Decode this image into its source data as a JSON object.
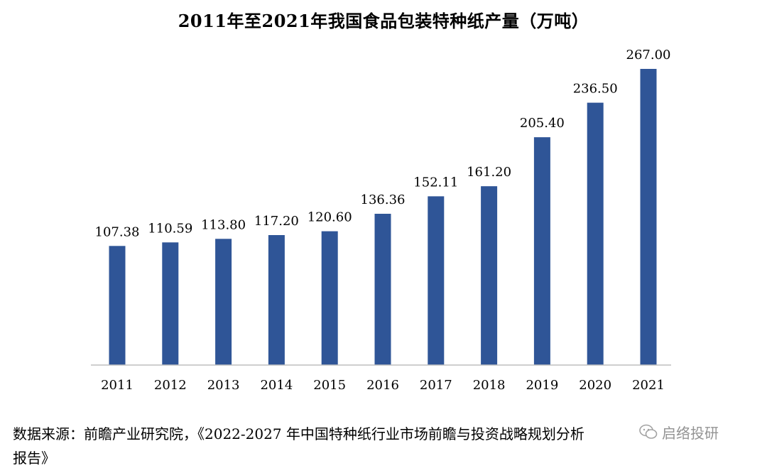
{
  "chart_data": {
    "type": "bar",
    "title": "2011年至2021年我国食品包装特种纸产量（万吨）",
    "categories": [
      "2011",
      "2012",
      "2013",
      "2014",
      "2015",
      "2016",
      "2017",
      "2018",
      "2019",
      "2020",
      "2021"
    ],
    "values": [
      107.38,
      110.59,
      113.8,
      117.2,
      120.6,
      136.36,
      152.11,
      161.2,
      205.4,
      236.5,
      267.0
    ],
    "value_labels": [
      "107.38",
      "110.59",
      "113.80",
      "117.20",
      "120.60",
      "136.36",
      "152.11",
      "161.20",
      "205.40",
      "236.50",
      "267.00"
    ],
    "xlabel": "",
    "ylabel": "",
    "ylim": [
      0,
      267
    ],
    "grid": false,
    "legend": "none",
    "bar_color": "#2F5597"
  },
  "source": {
    "line1": "数据来源：前瞻产业研究院，《2022-2027 年中国特种纸行业市场前瞻与投资战略规划分析",
    "line2": "报告》"
  },
  "watermark": {
    "text": "启络投研",
    "icon": "wechat-icon"
  }
}
